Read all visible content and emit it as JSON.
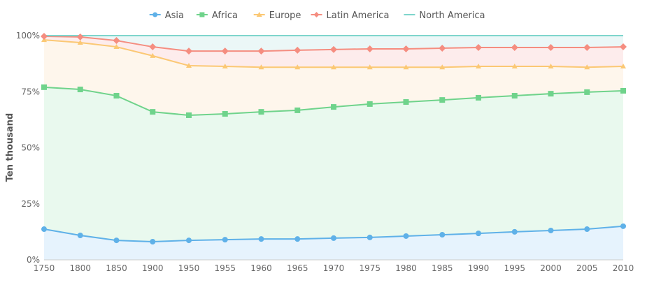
{
  "chart_data": {
    "type": "area",
    "stacking": "percent",
    "title": "",
    "xlabel": "",
    "ylabel": "Ten thousand",
    "categories": [
      "1750",
      "1800",
      "1850",
      "1900",
      "1950",
      "1955",
      "1960",
      "1965",
      "1970",
      "1975",
      "1980",
      "1985",
      "1990",
      "1995",
      "2000",
      "2005",
      "2010"
    ],
    "ylim": [
      0,
      100
    ],
    "yticks": [
      "0%",
      "25%",
      "50%",
      "75%",
      "100%"
    ],
    "grid": true,
    "legend": "top-center",
    "series": [
      {
        "name": "Asia",
        "color": "#5fb1e8",
        "fill": "#e6f3fd",
        "marker": "circle",
        "values": [
          13.7,
          10.9,
          8.7,
          8.1,
          8.7,
          9.0,
          9.3,
          9.3,
          9.7,
          10.0,
          10.6,
          11.2,
          11.8,
          12.5,
          13.1,
          13.7,
          15.0
        ]
      },
      {
        "name": "Africa",
        "color": "#6fd38b",
        "fill": "#e9f9ee",
        "marker": "square",
        "values": [
          63.3,
          65.1,
          64.5,
          57.9,
          55.8,
          56.1,
          56.7,
          57.4,
          58.5,
          59.5,
          59.8,
          60.1,
          60.5,
          60.7,
          61.0,
          61.1,
          60.4
        ]
      },
      {
        "name": "Europe",
        "color": "#fbc874",
        "fill": "#fef6ec",
        "marker": "triangle",
        "values": [
          21.1,
          20.9,
          21.8,
          25.0,
          22.1,
          21.2,
          19.9,
          19.2,
          17.7,
          16.4,
          15.5,
          14.6,
          14.0,
          13.1,
          12.2,
          11.1,
          10.9
        ]
      },
      {
        "name": "Latin America",
        "color": "#f58d80",
        "fill": "#fdecec",
        "marker": "diamond",
        "values": [
          1.6,
          2.5,
          2.8,
          4.0,
          6.5,
          6.8,
          7.2,
          7.6,
          7.9,
          8.2,
          8.2,
          8.5,
          8.4,
          8.4,
          8.4,
          8.8,
          8.7
        ]
      },
      {
        "name": "North America",
        "color": "#7ed5cc",
        "fill": "#ebf7f7",
        "marker": "none",
        "values": [
          0.3,
          0.6,
          2.2,
          5.0,
          6.9,
          6.9,
          6.9,
          6.5,
          6.2,
          5.9,
          5.9,
          5.6,
          5.3,
          5.3,
          5.3,
          5.3,
          5.0
        ]
      }
    ]
  }
}
